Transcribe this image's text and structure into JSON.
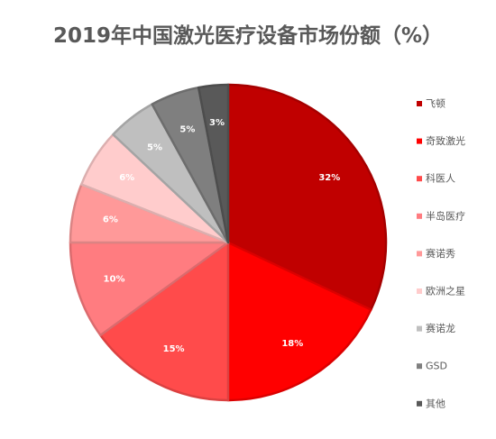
{
  "chart_data": {
    "type": "pie",
    "title": "2019年中国激光医疗设备市场份额（%）",
    "legend_position": "right",
    "slices": [
      {
        "name": "飞顿",
        "value": 32,
        "label": "32%",
        "color": "#c00000",
        "label_color": "#ffffff"
      },
      {
        "name": "奇致激光",
        "value": 18,
        "label": "18%",
        "color": "#ff0000",
        "label_color": "#ffffff"
      },
      {
        "name": "科医人",
        "value": 15,
        "label": "15%",
        "color": "#ff4b4b",
        "label_color": "#ffffff"
      },
      {
        "name": "半岛医疗",
        "value": 10,
        "label": "10%",
        "color": "#ff7c80",
        "label_color": "#ffffff"
      },
      {
        "name": "赛诺秀",
        "value": 6,
        "label": "6%",
        "color": "#ff9999",
        "label_color": "#ffffff"
      },
      {
        "name": "欧洲之星",
        "value": 6,
        "label": "6%",
        "color": "#ffcccc",
        "label_color": "#ffffff"
      },
      {
        "name": "赛诺龙",
        "value": 5,
        "label": "5%",
        "color": "#bfbfbf",
        "label_color": "#ffffff"
      },
      {
        "name": "GSD",
        "value": 5,
        "label": "5%",
        "color": "#7f7f7f",
        "label_color": "#ffffff"
      },
      {
        "name": "其他",
        "value": 3,
        "label": "3%",
        "color": "#595959",
        "label_color": "#ffffff"
      }
    ]
  }
}
